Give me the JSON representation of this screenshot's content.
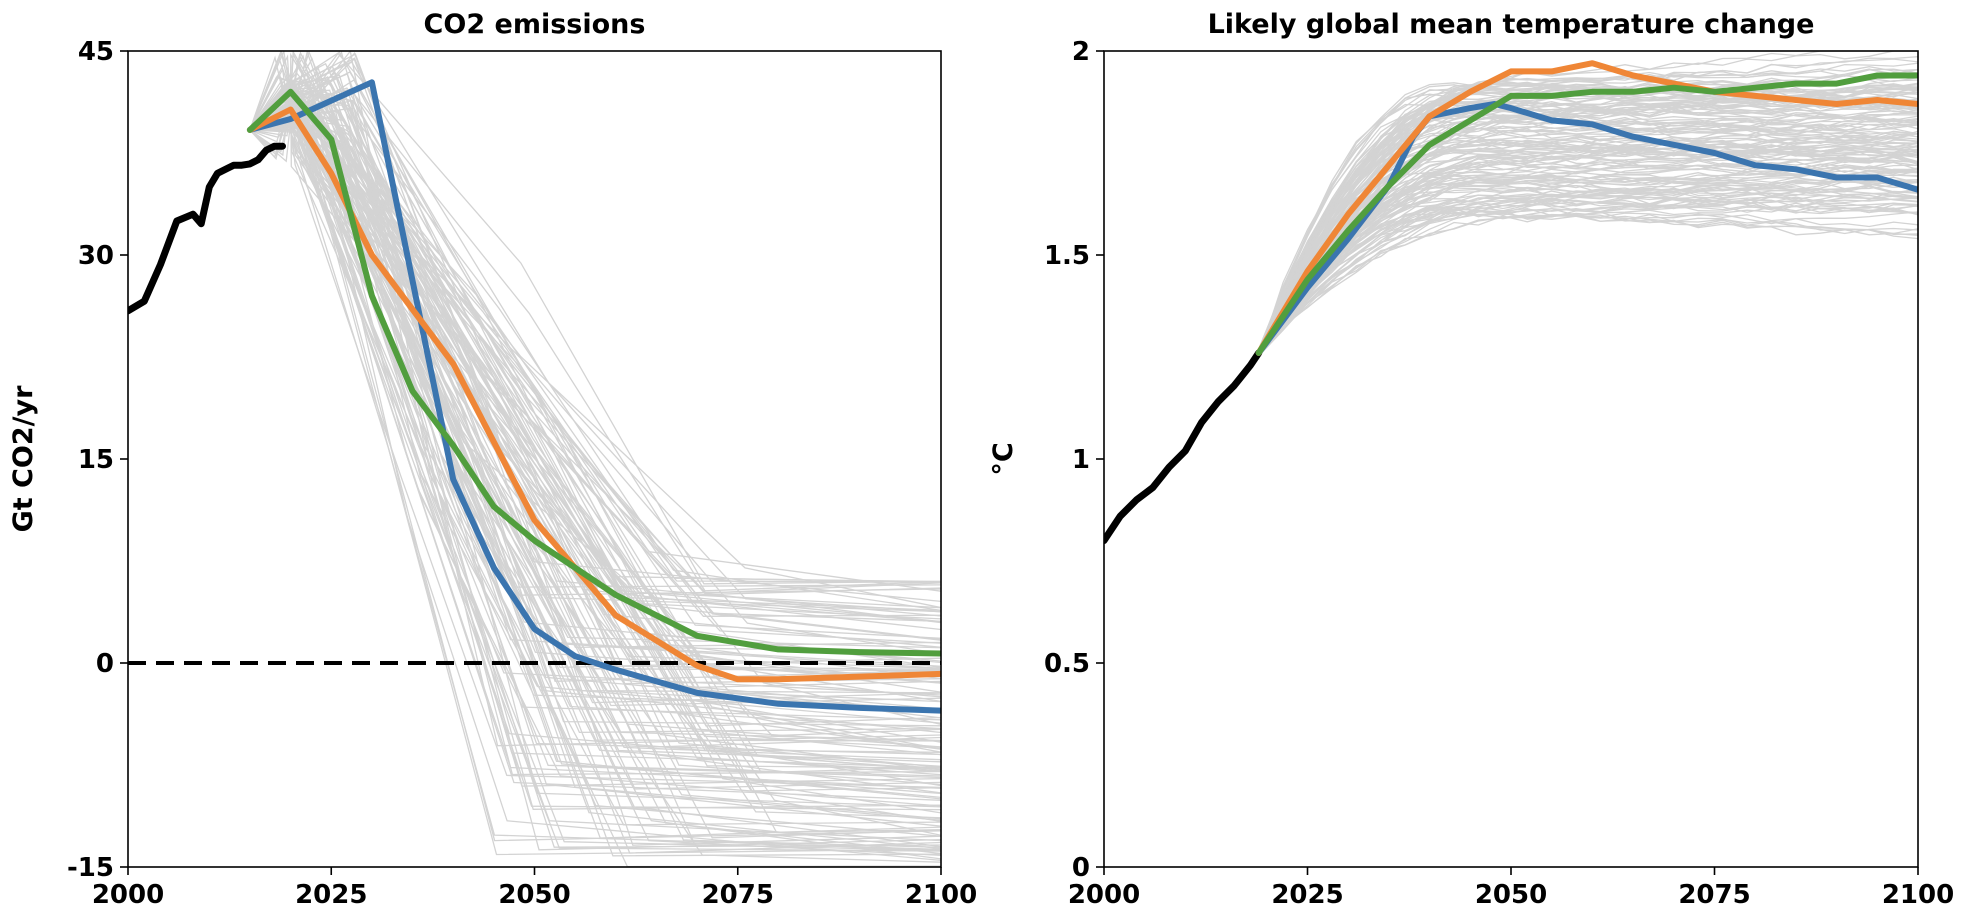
{
  "chart_data": [
    {
      "type": "line",
      "title": "CO2 emissions",
      "xlabel": "",
      "ylabel": "Gt CO2/yr",
      "xlim": [
        2000,
        2100
      ],
      "ylim": [
        -15,
        45
      ],
      "x_ticks": [
        "2000",
        "2025",
        "2050",
        "2075",
        "2100"
      ],
      "y_ticks": [
        "-15",
        "0",
        "15",
        "30",
        "45"
      ],
      "reference_line": {
        "y": 0,
        "style": "dashed",
        "color": "#000000"
      },
      "background_ensemble": {
        "count": 150,
        "color": "#d3d3d3",
        "description_range": "envelope of scenario pathways"
      },
      "series": [
        {
          "color": "#000000",
          "x": [
            2000,
            2002,
            2004,
            2006,
            2008,
            2009,
            2010,
            2011,
            2012,
            2013,
            2014,
            2015,
            2016,
            2017,
            2018,
            2019
          ],
          "y": [
            25.9,
            26.6,
            29.3,
            32.5,
            33.0,
            32.3,
            35.0,
            36.0,
            36.3,
            36.6,
            36.6,
            36.7,
            37.0,
            37.7,
            38.0,
            38.0
          ]
        },
        {
          "color": "#3b75af",
          "x": [
            2015,
            2020,
            2030,
            2040,
            2045,
            2050,
            2055,
            2060,
            2070,
            2080,
            2090,
            2100
          ],
          "y": [
            39.2,
            40.0,
            42.7,
            13.5,
            7.0,
            2.5,
            0.5,
            -0.5,
            -2.2,
            -3.0,
            -3.3,
            -3.5
          ]
        },
        {
          "color": "#ef8636",
          "x": [
            2015,
            2020,
            2025,
            2030,
            2040,
            2050,
            2060,
            2070,
            2075,
            2080,
            2090,
            2100
          ],
          "y": [
            39.2,
            40.7,
            36.0,
            30.0,
            22.0,
            10.5,
            3.5,
            -0.2,
            -1.2,
            -1.2,
            -1.0,
            -0.8
          ]
        },
        {
          "color": "#519e3e",
          "x": [
            2015,
            2020,
            2025,
            2030,
            2035,
            2040,
            2045,
            2050,
            2060,
            2070,
            2080,
            2090,
            2100
          ],
          "y": [
            39.2,
            42.0,
            38.5,
            27.0,
            20.0,
            16.0,
            11.5,
            9.0,
            5.0,
            2.0,
            1.0,
            0.8,
            0.7
          ]
        }
      ]
    },
    {
      "type": "line",
      "title": "Likely global mean temperature change",
      "xlabel": "",
      "ylabel": "°C",
      "xlim": [
        2000,
        2100
      ],
      "ylim": [
        0,
        2
      ],
      "x_ticks": [
        "2000",
        "2025",
        "2050",
        "2075",
        "2100"
      ],
      "y_ticks": [
        "0",
        "0.5",
        "1",
        "1.5",
        "2"
      ],
      "background_ensemble": {
        "count": 150,
        "color": "#d3d3d3",
        "description_range": "envelope of scenario pathways"
      },
      "series": [
        {
          "color": "#000000",
          "x": [
            2000,
            2002,
            2004,
            2006,
            2008,
            2010,
            2012,
            2014,
            2016,
            2018,
            2019
          ],
          "y": [
            0.8,
            0.86,
            0.9,
            0.93,
            0.98,
            1.02,
            1.09,
            1.14,
            1.18,
            1.23,
            1.26
          ]
        },
        {
          "color": "#3b75af",
          "x": [
            2019,
            2025,
            2030,
            2035,
            2038,
            2040,
            2045,
            2048,
            2050,
            2055,
            2060,
            2065,
            2070,
            2075,
            2080,
            2085,
            2090,
            2095,
            2100
          ],
          "y": [
            1.26,
            1.42,
            1.54,
            1.67,
            1.79,
            1.84,
            1.86,
            1.87,
            1.86,
            1.83,
            1.82,
            1.79,
            1.77,
            1.75,
            1.72,
            1.71,
            1.69,
            1.69,
            1.66
          ]
        },
        {
          "color": "#ef8636",
          "x": [
            2019,
            2025,
            2030,
            2035,
            2040,
            2045,
            2050,
            2055,
            2060,
            2065,
            2070,
            2075,
            2080,
            2085,
            2090,
            2095,
            2100
          ],
          "y": [
            1.26,
            1.46,
            1.6,
            1.72,
            1.84,
            1.9,
            1.95,
            1.95,
            1.97,
            1.94,
            1.92,
            1.9,
            1.89,
            1.88,
            1.87,
            1.88,
            1.87
          ]
        },
        {
          "color": "#519e3e",
          "x": [
            2019,
            2025,
            2030,
            2035,
            2040,
            2045,
            2050,
            2055,
            2060,
            2065,
            2070,
            2075,
            2080,
            2085,
            2090,
            2095,
            2100
          ],
          "y": [
            1.26,
            1.44,
            1.56,
            1.67,
            1.77,
            1.83,
            1.89,
            1.89,
            1.9,
            1.9,
            1.91,
            1.9,
            1.91,
            1.92,
            1.92,
            1.94,
            1.94
          ]
        }
      ]
    }
  ]
}
